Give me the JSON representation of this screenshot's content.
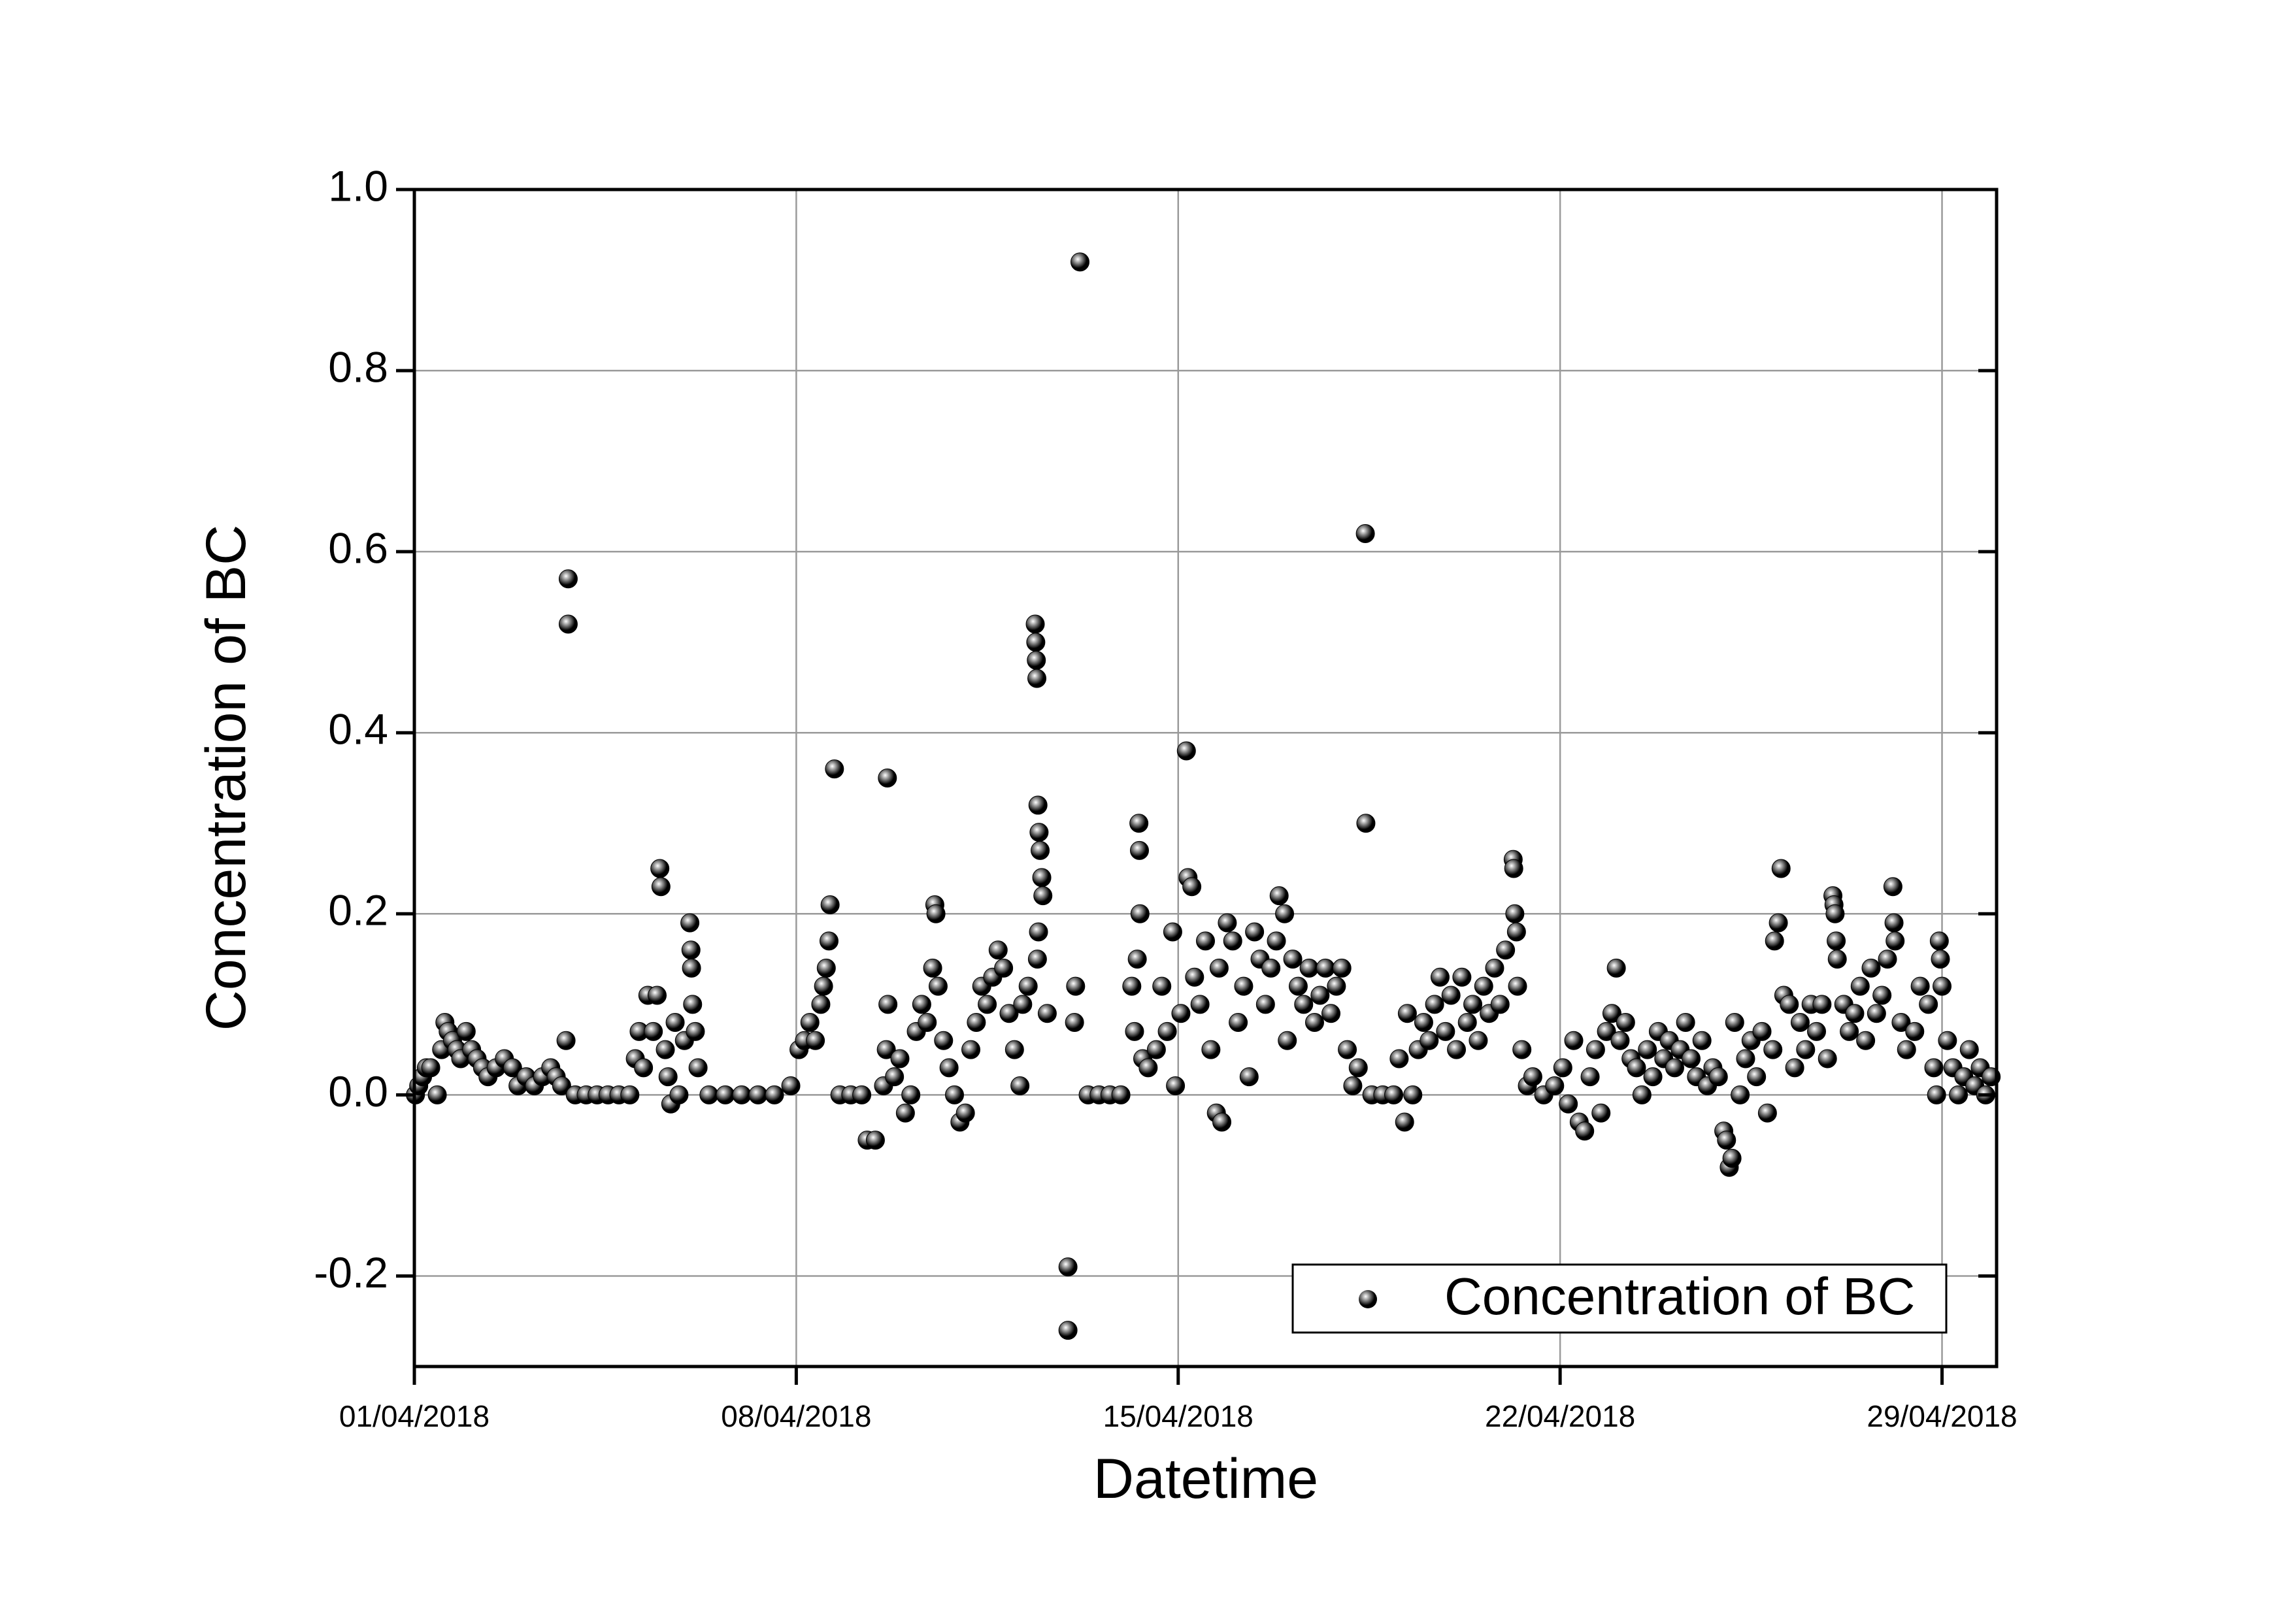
{
  "chart_data": {
    "type": "scatter",
    "xlabel": "Datetime",
    "ylabel": "Concentration of BC",
    "xlim": [
      1,
      30
    ],
    "ylim": [
      -0.3,
      1.0
    ],
    "xticks": [
      {
        "value": 1,
        "label": "01/04/2018"
      },
      {
        "value": 8,
        "label": "08/04/2018"
      },
      {
        "value": 15,
        "label": "15/04/2018"
      },
      {
        "value": 22,
        "label": "22/04/2018"
      },
      {
        "value": 29,
        "label": "29/04/2018"
      }
    ],
    "yticks": [
      {
        "value": -0.2,
        "label": "-0.2"
      },
      {
        "value": 0,
        "label": "0.0"
      },
      0.2,
      0.4,
      0.6,
      0.8,
      {
        "value": 1,
        "label": "1.0"
      }
    ],
    "grid": true,
    "legend": "lower right",
    "series": [
      {
        "name": "Concentration of BC",
        "color": "#000000",
        "x": [
          1.02,
          1.08,
          1.15,
          1.22,
          1.3,
          1.42,
          1.5,
          1.56,
          1.62,
          1.7,
          1.78,
          1.85,
          1.95,
          2.05,
          2.15,
          2.25,
          2.35,
          2.5,
          2.65,
          2.8,
          2.9,
          3.05,
          3.2,
          3.35,
          3.5,
          3.6,
          3.7,
          3.78,
          3.82,
          3.82,
          3.95,
          4.15,
          4.35,
          4.55,
          4.75,
          4.95,
          5.05,
          5.12,
          5.2,
          5.28,
          5.38,
          5.45,
          5.5,
          5.52,
          5.6,
          5.65,
          5.7,
          5.78,
          5.85,
          5.95,
          6.05,
          6.07,
          6.08,
          6.1,
          6.15,
          6.2,
          6.4,
          6.7,
          7.0,
          7.3,
          7.6,
          7.9,
          8.05,
          8.15,
          8.25,
          8.35,
          8.45,
          8.5,
          8.55,
          8.6,
          8.62,
          8.7,
          8.8,
          9.0,
          9.2,
          9.3,
          9.45,
          9.6,
          9.65,
          9.67,
          9.68,
          9.8,
          9.9,
          10.0,
          10.1,
          10.2,
          10.3,
          10.4,
          10.5,
          10.54,
          10.56,
          10.6,
          10.7,
          10.8,
          10.9,
          11.0,
          11.1,
          11.2,
          11.3,
          11.4,
          11.5,
          11.6,
          11.7,
          11.8,
          11.9,
          12.0,
          12.1,
          12.15,
          12.25,
          12.38,
          12.39,
          12.4,
          12.41,
          12.43,
          12.45,
          12.47,
          12.5,
          12.52,
          12.44,
          12.42,
          12.6,
          12.98,
          12.98,
          13.12,
          13.1,
          13.2,
          13.35,
          13.55,
          13.75,
          13.95,
          14.15,
          14.2,
          14.25,
          14.28,
          14.29,
          14.3,
          14.35,
          14.45,
          14.6,
          14.7,
          14.8,
          14.9,
          14.95,
          15.05,
          15.15,
          15.18,
          15.25,
          15.3,
          15.4,
          15.5,
          15.6,
          15.7,
          15.75,
          15.8,
          15.9,
          16.0,
          16.1,
          16.2,
          16.3,
          16.4,
          16.5,
          16.6,
          16.7,
          16.8,
          16.85,
          16.95,
          17.0,
          17.1,
          17.2,
          17.3,
          17.4,
          17.5,
          17.6,
          17.7,
          17.8,
          17.9,
          18.0,
          18.1,
          18.2,
          18.3,
          18.43,
          18.44,
          18.55,
          18.75,
          18.95,
          19.05,
          19.15,
          19.2,
          19.3,
          19.4,
          19.5,
          19.6,
          19.7,
          19.8,
          19.9,
          20.0,
          20.1,
          20.2,
          20.3,
          20.4,
          20.5,
          20.6,
          20.7,
          20.8,
          20.9,
          21.0,
          21.14,
          21.15,
          21.17,
          21.2,
          21.22,
          21.3,
          21.4,
          21.5,
          21.7,
          21.9,
          22.05,
          22.15,
          22.25,
          22.35,
          22.45,
          22.55,
          22.65,
          22.75,
          22.85,
          22.95,
          23.03,
          23.1,
          23.2,
          23.3,
          23.4,
          23.5,
          23.6,
          23.7,
          23.8,
          23.9,
          24.0,
          24.1,
          24.2,
          24.3,
          24.4,
          24.5,
          24.6,
          24.7,
          24.8,
          24.9,
          25.0,
          25.05,
          25.1,
          25.15,
          25.2,
          25.3,
          25.4,
          25.5,
          25.6,
          25.7,
          25.8,
          25.9,
          25.93,
          26.0,
          26.05,
          26.1,
          26.2,
          26.3,
          26.4,
          26.5,
          26.6,
          26.7,
          26.8,
          26.9,
          27.0,
          27.02,
          27.04,
          27.06,
          27.08,
          27.2,
          27.3,
          27.4,
          27.5,
          27.6,
          27.7,
          27.8,
          27.9,
          28.0,
          28.1,
          28.12,
          28.14,
          28.25,
          28.35,
          28.5,
          28.6,
          28.75,
          28.85,
          28.95,
          28.97,
          29.0,
          28.9,
          29.1,
          29.2,
          29.3,
          29.4,
          29.5,
          29.6,
          29.7,
          29.8,
          29.9
        ],
        "values": [
          0.0,
          0.01,
          0.02,
          0.03,
          0.03,
          0.0,
          0.05,
          0.08,
          0.07,
          0.06,
          0.05,
          0.04,
          0.07,
          0.05,
          0.04,
          0.03,
          0.02,
          0.03,
          0.04,
          0.03,
          0.01,
          0.02,
          0.01,
          0.02,
          0.03,
          0.02,
          0.01,
          0.06,
          0.57,
          0.52,
          0.0,
          0.0,
          0.0,
          0.0,
          0.0,
          0.0,
          0.04,
          0.07,
          0.03,
          0.11,
          0.07,
          0.11,
          0.25,
          0.23,
          0.05,
          0.02,
          -0.01,
          0.08,
          0.0,
          0.06,
          0.19,
          0.16,
          0.14,
          0.1,
          0.07,
          0.03,
          0.0,
          0.0,
          0.0,
          0.0,
          0.0,
          0.01,
          0.05,
          0.06,
          0.08,
          0.06,
          0.1,
          0.12,
          0.14,
          0.17,
          0.21,
          0.36,
          0.0,
          0.0,
          0.0,
          -0.05,
          -0.05,
          0.01,
          0.05,
          0.35,
          0.1,
          0.02,
          0.04,
          -0.02,
          0.0,
          0.07,
          0.1,
          0.08,
          0.14,
          0.21,
          0.2,
          0.12,
          0.06,
          0.03,
          0.0,
          -0.03,
          -0.02,
          0.05,
          0.08,
          0.12,
          0.1,
          0.13,
          0.16,
          0.14,
          0.09,
          0.05,
          0.01,
          0.1,
          0.12,
          0.52,
          0.5,
          0.48,
          0.46,
          0.32,
          0.29,
          0.27,
          0.24,
          0.22,
          0.18,
          0.15,
          0.09,
          -0.19,
          -0.26,
          0.12,
          0.08,
          0.92,
          0.0,
          0.0,
          0.0,
          0.0,
          0.12,
          0.07,
          0.15,
          0.3,
          0.27,
          0.2,
          0.04,
          0.03,
          0.05,
          0.12,
          0.07,
          0.18,
          0.01,
          0.09,
          0.38,
          0.24,
          0.23,
          0.13,
          0.1,
          0.17,
          0.05,
          -0.02,
          0.14,
          -0.03,
          0.19,
          0.17,
          0.08,
          0.12,
          0.02,
          0.18,
          0.15,
          0.1,
          0.14,
          0.17,
          0.22,
          0.2,
          0.06,
          0.15,
          0.12,
          0.1,
          0.14,
          0.08,
          0.11,
          0.14,
          0.09,
          0.12,
          0.14,
          0.05,
          0.01,
          0.03,
          0.62,
          0.3,
          0.0,
          0.0,
          0.0,
          0.04,
          -0.03,
          0.09,
          0.0,
          0.05,
          0.08,
          0.06,
          0.1,
          0.13,
          0.07,
          0.11,
          0.05,
          0.13,
          0.08,
          0.1,
          0.06,
          0.12,
          0.09,
          0.14,
          0.1,
          0.16,
          0.26,
          0.25,
          0.2,
          0.18,
          0.12,
          0.05,
          0.01,
          0.02,
          0.0,
          0.01,
          0.03,
          -0.01,
          0.06,
          -0.03,
          -0.04,
          0.02,
          0.05,
          -0.02,
          0.07,
          0.09,
          0.14,
          0.06,
          0.08,
          0.04,
          0.03,
          0.0,
          0.05,
          0.02,
          0.07,
          0.04,
          0.06,
          0.03,
          0.05,
          0.08,
          0.04,
          0.02,
          0.06,
          0.01,
          0.03,
          0.02,
          -0.04,
          -0.05,
          -0.08,
          -0.07,
          0.08,
          0.0,
          0.04,
          0.06,
          0.02,
          0.07,
          -0.02,
          0.05,
          0.17,
          0.19,
          0.25,
          0.11,
          0.1,
          0.03,
          0.08,
          0.05,
          0.1,
          0.07,
          0.1,
          0.04,
          0.22,
          0.21,
          0.2,
          0.17,
          0.15,
          0.1,
          0.07,
          0.09,
          0.12,
          0.06,
          0.14,
          0.09,
          0.11,
          0.15,
          0.23,
          0.19,
          0.17,
          0.08,
          0.05,
          0.07,
          0.12,
          0.1,
          0.03,
          0.17,
          0.15,
          0.12,
          0.0,
          0.06,
          0.03,
          0.0,
          0.02,
          0.05,
          0.01,
          0.03,
          0.0,
          0.02
        ]
      }
    ]
  }
}
